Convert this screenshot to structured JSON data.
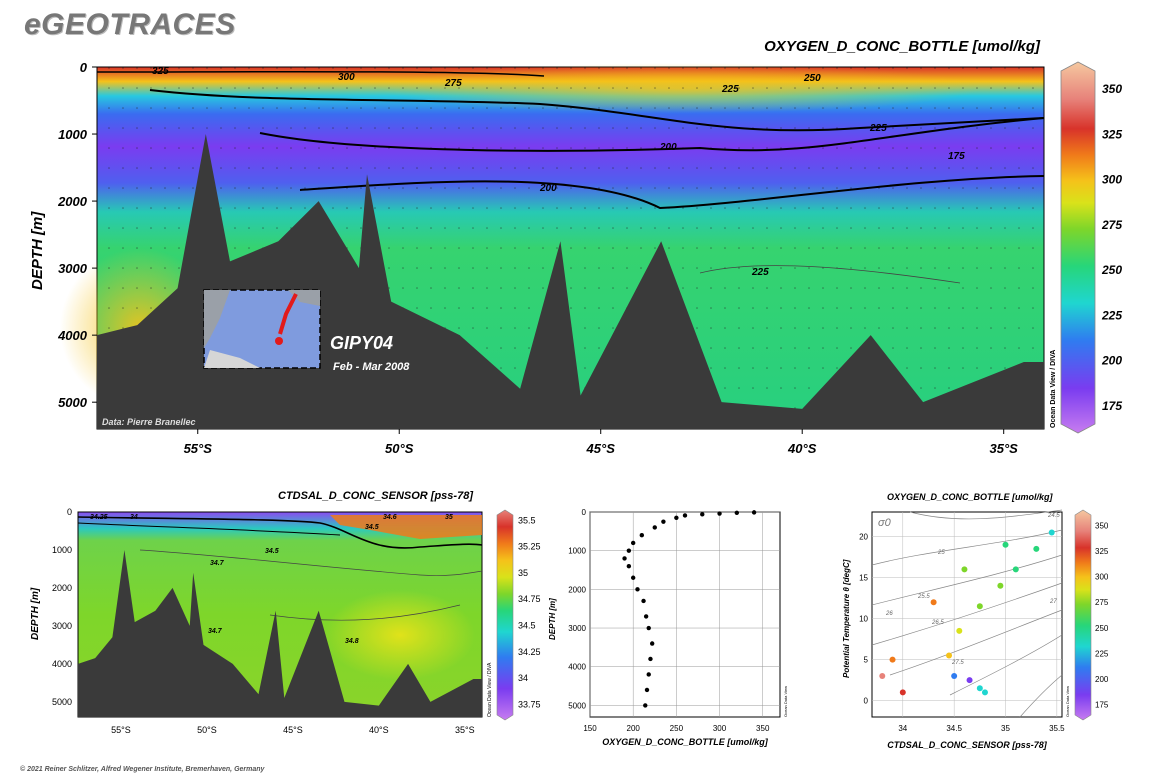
{
  "header": {
    "brand": "eGEOTRACES",
    "footer": "© 2021 Reiner Schlitzer, Alfred Wegener Institute, Bremerhaven, Germany"
  },
  "main_section": {
    "title": "OXYGEN_D_CONC_BOTTLE [umol/kg]",
    "ylabel": "DEPTH [m]",
    "credit": "Data: Pierre Branellec",
    "cruise": "GIPY04",
    "dates": "Feb - Mar 2008",
    "watermark": "Ocean Data View / DIVA"
  },
  "salinity_section": {
    "title": "CTDSAL_D_CONC_SENSOR [pss-78]",
    "ylabel": "DEPTH [m]",
    "watermark": "Ocean Data View / DIVA"
  },
  "profile": {
    "xlabel": "OXYGEN_D_CONC_BOTTLE [umol/kg]",
    "ylabel": "DEPTH [m]",
    "watermark": "Ocean Data View"
  },
  "ts_plot": {
    "title": "OXYGEN_D_CONC_BOTTLE [umol/kg]",
    "xlabel": "CTDSAL_D_CONC_SENSOR [pss-78]",
    "ylabel": "Potential Temperature θ [degC]",
    "sigma_label": "σ0",
    "watermark": "Ocean Data View"
  },
  "colors": {
    "land": "#3a3a3a",
    "oxygen_scale": [
      "#c77cf0",
      "#7a3cf0",
      "#2f7cf0",
      "#1fd6d0",
      "#27d67a",
      "#7ed62a",
      "#d9e21a",
      "#f5c21a",
      "#f07a1a",
      "#d8332a",
      "#e7827a",
      "#f5c8a0"
    ],
    "salinity_scale": [
      "#c77cf0",
      "#7a3cf0",
      "#2f7cf0",
      "#1fd6d0",
      "#27d67a",
      "#7ed62a",
      "#d9e21a",
      "#f5c21a",
      "#f07a1a",
      "#d8332a",
      "#e7827a"
    ]
  },
  "chart_data": [
    {
      "type": "heatmap",
      "title": "OXYGEN_D_CONC_BOTTLE [umol/kg]",
      "ylabel": "DEPTH [m]",
      "x_ticks": [
        "55°S",
        "50°S",
        "45°S",
        "40°S",
        "35°S"
      ],
      "x_values": [
        -55,
        -50,
        -45,
        -40,
        -35
      ],
      "xlim": [
        -57.5,
        -34
      ],
      "y_ticks": [
        "0",
        "1000",
        "2000",
        "3000",
        "4000",
        "5000"
      ],
      "ylim": [
        0,
        5400
      ],
      "colorbar_ticks": [
        "350",
        "325",
        "300",
        "275",
        "250",
        "225",
        "200",
        "175"
      ],
      "contours": [
        {
          "label": "325",
          "depth": 60
        },
        {
          "label": "300",
          "depth": 150
        },
        {
          "label": "275",
          "depth": 220
        },
        {
          "label": "250",
          "depth": 150
        },
        {
          "label": "225",
          "depth": 300
        },
        {
          "label": "225",
          "depth": 900
        },
        {
          "label": "200",
          "depth": 1150
        },
        {
          "label": "200",
          "depth": 1800
        },
        {
          "label": "175",
          "depth": 1300
        },
        {
          "label": "225",
          "depth": 3000
        }
      ],
      "bathymetry": [
        {
          "lat": -57.5,
          "depth": 4000
        },
        {
          "lat": -56.5,
          "depth": 3850
        },
        {
          "lat": -55.5,
          "depth": 3300
        },
        {
          "lat": -54.8,
          "depth": 1000
        },
        {
          "lat": -54.2,
          "depth": 2900
        },
        {
          "lat": -53.0,
          "depth": 2600
        },
        {
          "lat": -52.0,
          "depth": 2000
        },
        {
          "lat": -51.0,
          "depth": 3000
        },
        {
          "lat": -50.8,
          "depth": 1600
        },
        {
          "lat": -50.2,
          "depth": 3500
        },
        {
          "lat": -48.5,
          "depth": 4000
        },
        {
          "lat": -47.0,
          "depth": 4800
        },
        {
          "lat": -46.0,
          "depth": 2600
        },
        {
          "lat": -45.5,
          "depth": 4900
        },
        {
          "lat": -43.5,
          "depth": 2600
        },
        {
          "lat": -42.0,
          "depth": 5000
        },
        {
          "lat": -40.0,
          "depth": 5100
        },
        {
          "lat": -38.3,
          "depth": 4000
        },
        {
          "lat": -37.0,
          "depth": 5000
        },
        {
          "lat": -34.5,
          "depth": 4400
        }
      ]
    },
    {
      "type": "heatmap",
      "title": "CTDSAL_D_CONC_SENSOR [pss-78]",
      "ylabel": "DEPTH [m]",
      "x_ticks": [
        "55°S",
        "50°S",
        "45°S",
        "40°S",
        "35°S"
      ],
      "y_ticks": [
        "0",
        "1000",
        "2000",
        "3000",
        "4000",
        "5000"
      ],
      "ylim": [
        0,
        5400
      ],
      "colorbar_ticks": [
        "35.5",
        "35.25",
        "35",
        "34.75",
        "34.5",
        "34.25",
        "34",
        "33.75"
      ],
      "contour_labels": [
        "34.25",
        "34",
        "34.5",
        "34.6",
        "35",
        "34.5",
        "34.7",
        "34.7",
        "34.8"
      ]
    },
    {
      "type": "scatter",
      "xlabel": "OXYGEN_D_CONC_BOTTLE [umol/kg]",
      "ylabel": "DEPTH [m]",
      "x_ticks": [
        "150",
        "200",
        "250",
        "300",
        "350"
      ],
      "y_ticks": [
        "0",
        "1000",
        "2000",
        "3000",
        "4000",
        "5000"
      ],
      "xlim": [
        150,
        370
      ],
      "ylim": [
        0,
        5300
      ],
      "points": [
        {
          "o2": 340,
          "z": 10
        },
        {
          "o2": 320,
          "z": 20
        },
        {
          "o2": 300,
          "z": 40
        },
        {
          "o2": 280,
          "z": 60
        },
        {
          "o2": 260,
          "z": 90
        },
        {
          "o2": 250,
          "z": 150
        },
        {
          "o2": 235,
          "z": 250
        },
        {
          "o2": 225,
          "z": 400
        },
        {
          "o2": 210,
          "z": 600
        },
        {
          "o2": 200,
          "z": 800
        },
        {
          "o2": 195,
          "z": 1000
        },
        {
          "o2": 190,
          "z": 1200
        },
        {
          "o2": 195,
          "z": 1400
        },
        {
          "o2": 200,
          "z": 1700
        },
        {
          "o2": 205,
          "z": 2000
        },
        {
          "o2": 212,
          "z": 2300
        },
        {
          "o2": 215,
          "z": 2700
        },
        {
          "o2": 218,
          "z": 3000
        },
        {
          "o2": 222,
          "z": 3400
        },
        {
          "o2": 220,
          "z": 3800
        },
        {
          "o2": 218,
          "z": 4200
        },
        {
          "o2": 216,
          "z": 4600
        },
        {
          "o2": 214,
          "z": 5000
        }
      ]
    },
    {
      "type": "scatter",
      "title": "OXYGEN_D_CONC_BOTTLE [umol/kg]",
      "xlabel": "CTDSAL_D_CONC_SENSOR [pss-78]",
      "ylabel": "Potential Temperature θ [degC]",
      "x_ticks": [
        "34",
        "34.5",
        "35",
        "35.5"
      ],
      "y_ticks": [
        "0",
        "5",
        "10",
        "15",
        "20"
      ],
      "xlim": [
        33.7,
        35.55
      ],
      "ylim": [
        -2,
        23
      ],
      "isopycnal_labels": [
        "24.5",
        "25",
        "25.5",
        "26",
        "26.5",
        "27",
        "27.5"
      ],
      "colorbar_ticks": [
        "350",
        "325",
        "300",
        "275",
        "250",
        "225",
        "200",
        "175"
      ],
      "points": [
        {
          "s": 35.45,
          "t": 20.5,
          "o2": 225
        },
        {
          "s": 35.3,
          "t": 18.5,
          "o2": 230
        },
        {
          "s": 35.1,
          "t": 16.0,
          "o2": 240
        },
        {
          "s": 34.95,
          "t": 14.0,
          "o2": 250
        },
        {
          "s": 34.75,
          "t": 11.5,
          "o2": 260
        },
        {
          "s": 34.55,
          "t": 8.5,
          "o2": 265
        },
        {
          "s": 34.45,
          "t": 5.5,
          "o2": 280
        },
        {
          "s": 34.5,
          "t": 3.0,
          "o2": 210
        },
        {
          "s": 34.65,
          "t": 2.5,
          "o2": 190
        },
        {
          "s": 34.75,
          "t": 1.5,
          "o2": 215
        },
        {
          "s": 34.8,
          "t": 1.0,
          "o2": 225
        },
        {
          "s": 33.8,
          "t": 3.0,
          "o2": 330
        },
        {
          "s": 33.9,
          "t": 5.0,
          "o2": 310
        },
        {
          "s": 34.0,
          "t": 1.0,
          "o2": 320
        },
        {
          "s": 34.3,
          "t": 12.0,
          "o2": 295
        },
        {
          "s": 34.6,
          "t": 16.0,
          "o2": 255
        },
        {
          "s": 35.0,
          "t": 19.0,
          "o2": 245
        }
      ]
    }
  ]
}
